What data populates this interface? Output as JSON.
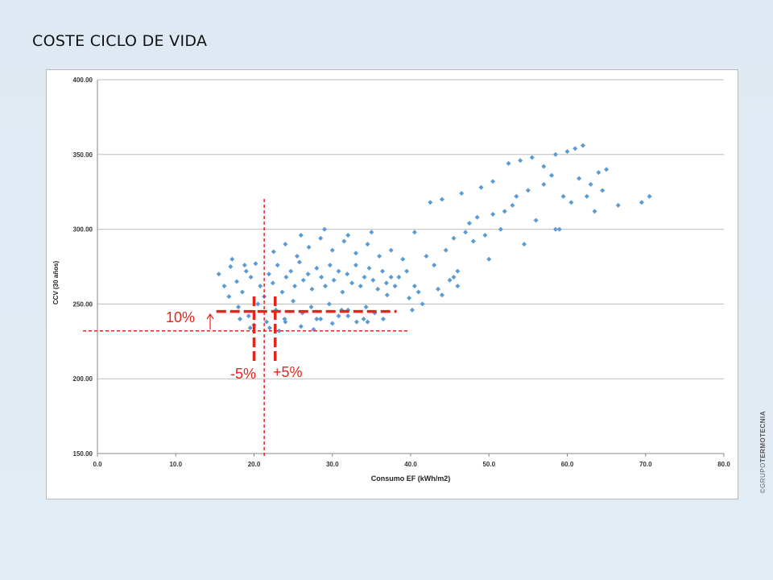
{
  "slide": {
    "title": "COSTE CICLO DE VIDA",
    "watermark_prefix": "©GRUPO",
    "watermark_brand": "TERMOTECNIA"
  },
  "chart_data": {
    "type": "scatter",
    "title": "",
    "xlabel": "Consumo EF (kWh/m2)",
    "ylabel": "CCV  (30 años)",
    "xlim": [
      0,
      80
    ],
    "ylim": [
      150,
      400
    ],
    "x_ticks": [
      0,
      10,
      20,
      30,
      40,
      50,
      60,
      70,
      80
    ],
    "y_ticks": [
      150,
      200,
      250,
      300,
      350,
      400
    ],
    "x_tick_labels": [
      "0.0",
      "10.0",
      "20.0",
      "30.0",
      "40.0",
      "50.0",
      "60.0",
      "70.0",
      "80.0"
    ],
    "y_tick_labels": [
      "150.00",
      "200.00",
      "250.00",
      "300.00",
      "350.00",
      "400.00"
    ],
    "grid": "horizontal",
    "marker": "diamond",
    "point_color": "#5b9bd5",
    "series": [
      {
        "points": [
          [
            15.5,
            270
          ],
          [
            16.2,
            262
          ],
          [
            17.0,
            275
          ],
          [
            17.8,
            265
          ],
          [
            18.5,
            258
          ],
          [
            19.0,
            272
          ],
          [
            19.6,
            268
          ],
          [
            20.2,
            277
          ],
          [
            20.8,
            262
          ],
          [
            21.3,
            255
          ],
          [
            21.9,
            270
          ],
          [
            22.4,
            264
          ],
          [
            23.0,
            276
          ],
          [
            23.6,
            258
          ],
          [
            24.1,
            268
          ],
          [
            24.7,
            272
          ],
          [
            25.2,
            262
          ],
          [
            25.8,
            278
          ],
          [
            26.3,
            266
          ],
          [
            26.9,
            270
          ],
          [
            27.4,
            260
          ],
          [
            28.0,
            274
          ],
          [
            28.6,
            268
          ],
          [
            29.1,
            262
          ],
          [
            29.7,
            276
          ],
          [
            30.2,
            266
          ],
          [
            30.8,
            272
          ],
          [
            31.3,
            258
          ],
          [
            31.9,
            270
          ],
          [
            32.5,
            264
          ],
          [
            33.0,
            276
          ],
          [
            33.6,
            262
          ],
          [
            34.1,
            268
          ],
          [
            34.7,
            274
          ],
          [
            35.2,
            266
          ],
          [
            35.8,
            260
          ],
          [
            36.4,
            272
          ],
          [
            36.9,
            264
          ],
          [
            37.5,
            268
          ],
          [
            38.0,
            262
          ],
          [
            18.0,
            248
          ],
          [
            19.3,
            242
          ],
          [
            20.5,
            250
          ],
          [
            21.6,
            238
          ],
          [
            22.8,
            246
          ],
          [
            23.9,
            240
          ],
          [
            25.0,
            252
          ],
          [
            26.2,
            244
          ],
          [
            27.3,
            248
          ],
          [
            28.5,
            240
          ],
          [
            29.6,
            250
          ],
          [
            30.8,
            242
          ],
          [
            32.0,
            246
          ],
          [
            33.1,
            238
          ],
          [
            34.3,
            248
          ],
          [
            35.4,
            244
          ],
          [
            20.0,
            236
          ],
          [
            22.0,
            234
          ],
          [
            24.0,
            238
          ],
          [
            26.0,
            235
          ],
          [
            28.0,
            240
          ],
          [
            30.0,
            237
          ],
          [
            32.0,
            242
          ],
          [
            34.0,
            240
          ],
          [
            22.5,
            285
          ],
          [
            24.0,
            290
          ],
          [
            25.5,
            282
          ],
          [
            27.0,
            288
          ],
          [
            28.5,
            294
          ],
          [
            30.0,
            286
          ],
          [
            31.5,
            292
          ],
          [
            33.0,
            284
          ],
          [
            34.5,
            290
          ],
          [
            36.0,
            282
          ],
          [
            37.5,
            286
          ],
          [
            39.0,
            280
          ],
          [
            26.0,
            296
          ],
          [
            29.0,
            300
          ],
          [
            32.0,
            296
          ],
          [
            35.0,
            298
          ],
          [
            38.5,
            268
          ],
          [
            39.5,
            272
          ],
          [
            40.5,
            262
          ],
          [
            41.0,
            258
          ],
          [
            39.8,
            254
          ],
          [
            41.5,
            250
          ],
          [
            40.2,
            246
          ],
          [
            37.0,
            256
          ],
          [
            42.0,
            282
          ],
          [
            43.0,
            276
          ],
          [
            44.5,
            286
          ],
          [
            45.5,
            268
          ],
          [
            46.0,
            262
          ],
          [
            43.5,
            260
          ],
          [
            44.0,
            256
          ],
          [
            45.0,
            266
          ],
          [
            40.5,
            298
          ],
          [
            42.5,
            318
          ],
          [
            44.0,
            320
          ],
          [
            46.5,
            324
          ],
          [
            47.5,
            304
          ],
          [
            48.5,
            308
          ],
          [
            45.5,
            294
          ],
          [
            47.0,
            298
          ],
          [
            48.0,
            292
          ],
          [
            49.5,
            296
          ],
          [
            50.5,
            310
          ],
          [
            51.5,
            300
          ],
          [
            49.0,
            328
          ],
          [
            50.5,
            332
          ],
          [
            52.0,
            312
          ],
          [
            53.0,
            316
          ],
          [
            52.5,
            344
          ],
          [
            54.0,
            346
          ],
          [
            55.5,
            348
          ],
          [
            53.5,
            322
          ],
          [
            55.0,
            326
          ],
          [
            56.0,
            306
          ],
          [
            57.0,
            330
          ],
          [
            58.0,
            336
          ],
          [
            58.5,
            350
          ],
          [
            60.0,
            352
          ],
          [
            61.0,
            354
          ],
          [
            62.0,
            356
          ],
          [
            59.5,
            322
          ],
          [
            60.5,
            318
          ],
          [
            61.5,
            334
          ],
          [
            63.0,
            330
          ],
          [
            64.0,
            338
          ],
          [
            65.0,
            340
          ],
          [
            63.5,
            312
          ],
          [
            58.5,
            300
          ],
          [
            66.5,
            316
          ],
          [
            69.5,
            318
          ],
          [
            70.5,
            322
          ],
          [
            57.0,
            342
          ],
          [
            59.0,
            300
          ],
          [
            62.5,
            322
          ],
          [
            64.5,
            326
          ],
          [
            54.5,
            290
          ],
          [
            50.0,
            280
          ],
          [
            46.0,
            272
          ],
          [
            36.5,
            240
          ],
          [
            34.5,
            238
          ],
          [
            17.2,
            280
          ],
          [
            18.8,
            276
          ],
          [
            16.8,
            255
          ],
          [
            18.2,
            240
          ],
          [
            19.5,
            234
          ],
          [
            23.2,
            232
          ],
          [
            27.6,
            233
          ],
          [
            31.2,
            246
          ]
        ]
      }
    ],
    "annotations": [
      {
        "text": "10%"
      },
      {
        "text": "-5%"
      },
      {
        "text": "+5%"
      }
    ],
    "reference_lines": {
      "vertical_x": 21.3,
      "horizontal_y": 232,
      "band_top_y": 245,
      "band_x_from": 15.5,
      "band_x_to": 38,
      "minus5_x": 20.0,
      "plus5_x": 22.7,
      "line_color": "#e3261c"
    }
  }
}
